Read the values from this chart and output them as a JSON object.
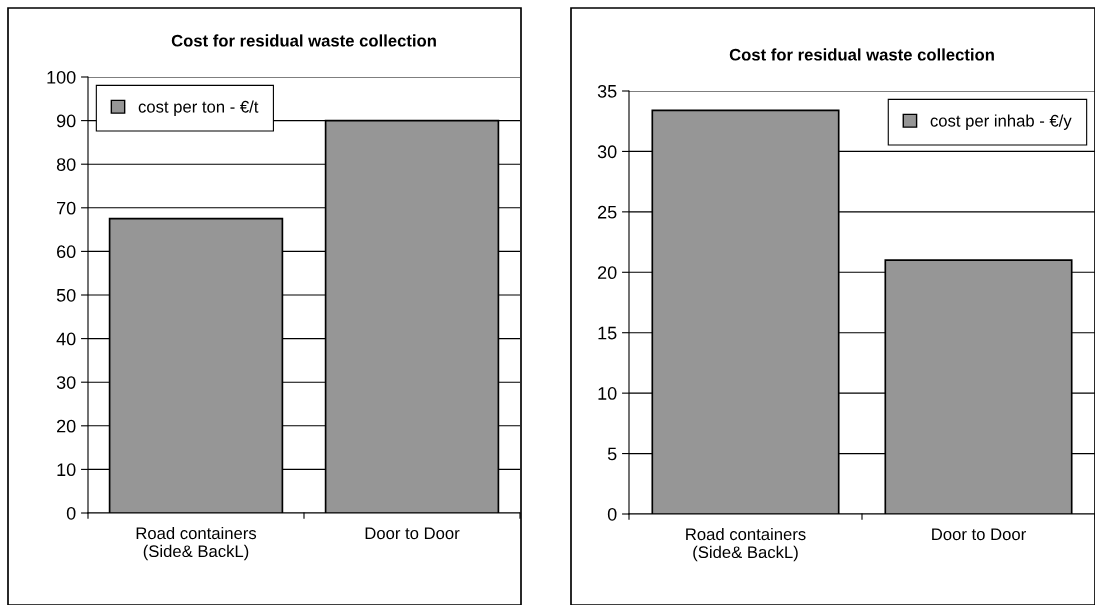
{
  "chart_data": [
    {
      "type": "bar",
      "title": "Cost for residual waste collection",
      "categories": [
        "Road containers\n(Side& BackL)",
        "Door to Door"
      ],
      "series": [
        {
          "name": "cost per ton - €/t",
          "color": "#969696",
          "values": [
            67.5,
            90
          ]
        }
      ],
      "ylim": [
        0,
        100
      ],
      "yticks": [
        0,
        10,
        20,
        30,
        40,
        50,
        60,
        70,
        80,
        90,
        100
      ],
      "grid": "y",
      "legend": "top left"
    },
    {
      "type": "bar",
      "title": "Cost for residual waste collection",
      "categories": [
        "Road containers\n(Side& BackL)",
        "Door to Door"
      ],
      "series": [
        {
          "name": "cost per inhab - €/y",
          "color": "#969696",
          "values": [
            33.4,
            21.0
          ]
        }
      ],
      "ylim": [
        0,
        35
      ],
      "yticks": [
        0,
        5,
        10,
        15,
        20,
        25,
        30,
        35
      ],
      "grid": "y",
      "legend": "top right"
    }
  ]
}
